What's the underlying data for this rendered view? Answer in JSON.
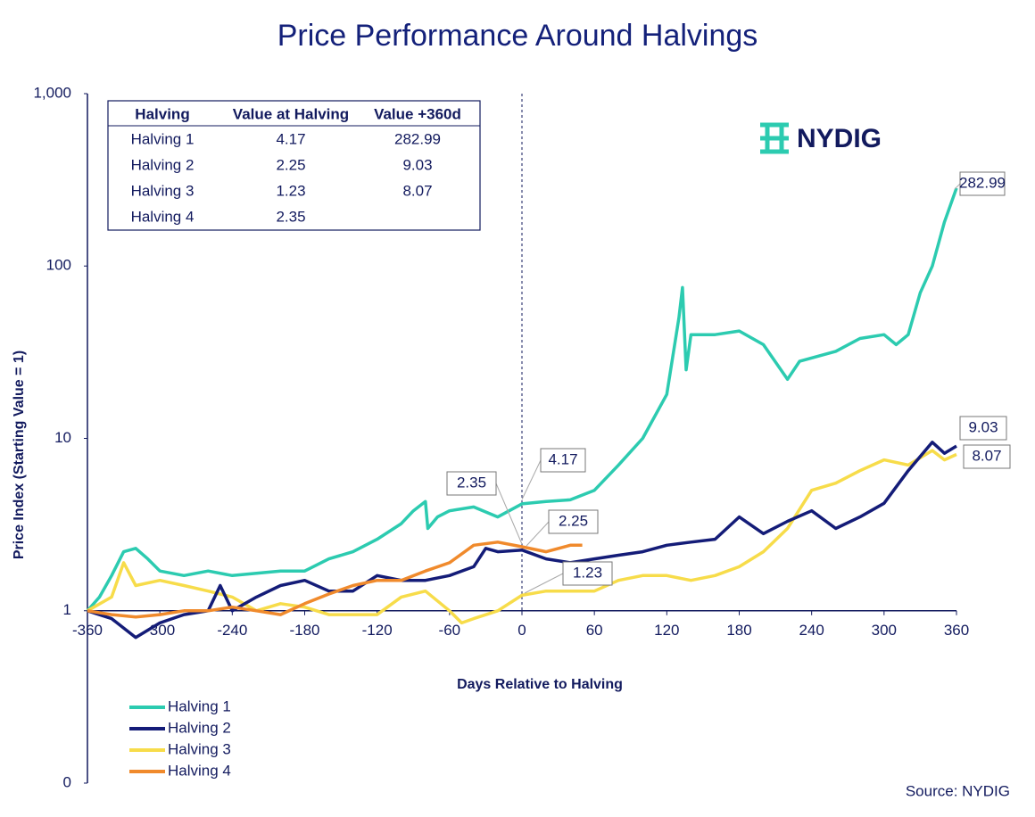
{
  "chart_data": {
    "type": "line",
    "title": "Price Performance Around Halvings",
    "xlabel": "Days Relative to Halving",
    "ylabel": "Price Index  (Starting Value = 1)",
    "source": "Source: NYDIG",
    "logo": "NYDIG",
    "log_scale": true,
    "legend": "bottom-left",
    "xlim": [
      -360,
      360
    ],
    "xticks": [
      -360,
      -300,
      -240,
      -180,
      -120,
      -60,
      0,
      60,
      120,
      180,
      240,
      300,
      360
    ],
    "ylim": [
      0.1,
      1000
    ],
    "yticks": [
      {
        "value": 0.1,
        "label": "0"
      },
      1,
      10,
      100,
      {
        "value": 1000,
        "label": "1,000"
      }
    ],
    "series": [
      {
        "name": "Halving 1",
        "color": "#2ccbb0",
        "x": [
          -360,
          -350,
          -340,
          -330,
          -320,
          -310,
          -300,
          -280,
          -260,
          -240,
          -220,
          -200,
          -180,
          -160,
          -140,
          -120,
          -100,
          -90,
          -80,
          -78,
          -70,
          -60,
          -40,
          -20,
          0,
          20,
          40,
          60,
          80,
          100,
          120,
          130,
          133,
          136,
          140,
          160,
          180,
          200,
          220,
          230,
          260,
          280,
          300,
          310,
          320,
          330,
          340,
          350,
          360
        ],
        "values": [
          1.0,
          1.2,
          1.6,
          2.2,
          2.3,
          2.0,
          1.7,
          1.6,
          1.7,
          1.6,
          1.65,
          1.7,
          1.7,
          2.0,
          2.2,
          2.6,
          3.2,
          3.8,
          4.3,
          3.0,
          3.5,
          3.8,
          4.0,
          3.5,
          4.17,
          4.3,
          4.4,
          5.0,
          7,
          10,
          18,
          50,
          75,
          25,
          40,
          40,
          42,
          35,
          22,
          28,
          32,
          38,
          40,
          35,
          40,
          70,
          100,
          180,
          282.99
        ]
      },
      {
        "name": "Halving 2",
        "color": "#141c78",
        "x": [
          -360,
          -340,
          -320,
          -300,
          -280,
          -260,
          -250,
          -240,
          -220,
          -200,
          -180,
          -160,
          -140,
          -120,
          -100,
          -80,
          -60,
          -40,
          -30,
          -20,
          0,
          20,
          40,
          60,
          80,
          100,
          120,
          140,
          160,
          180,
          200,
          220,
          240,
          260,
          280,
          300,
          320,
          340,
          350,
          360
        ],
        "values": [
          1.0,
          0.9,
          0.7,
          0.85,
          0.95,
          1.0,
          1.4,
          1.0,
          1.2,
          1.4,
          1.5,
          1.3,
          1.3,
          1.6,
          1.5,
          1.5,
          1.6,
          1.8,
          2.3,
          2.2,
          2.25,
          2.0,
          1.9,
          2.0,
          2.1,
          2.2,
          2.4,
          2.5,
          2.6,
          3.5,
          2.8,
          3.3,
          3.8,
          3.0,
          3.5,
          4.2,
          6.5,
          9.5,
          8.2,
          9.03
        ]
      },
      {
        "name": "Halving 3",
        "color": "#f7dc4a",
        "x": [
          -360,
          -340,
          -330,
          -320,
          -300,
          -280,
          -260,
          -240,
          -220,
          -200,
          -180,
          -160,
          -140,
          -120,
          -100,
          -80,
          -60,
          -50,
          -40,
          -20,
          0,
          20,
          40,
          60,
          80,
          100,
          120,
          140,
          160,
          180,
          200,
          220,
          240,
          260,
          280,
          300,
          320,
          340,
          350,
          360
        ],
        "values": [
          1.0,
          1.2,
          1.9,
          1.4,
          1.5,
          1.4,
          1.3,
          1.2,
          1.0,
          1.1,
          1.05,
          0.95,
          0.95,
          0.95,
          1.2,
          1.3,
          1.0,
          0.85,
          0.9,
          1.0,
          1.23,
          1.3,
          1.3,
          1.3,
          1.5,
          1.6,
          1.6,
          1.5,
          1.6,
          1.8,
          2.2,
          3.0,
          5.0,
          5.5,
          6.5,
          7.5,
          7.0,
          8.5,
          7.5,
          8.07
        ]
      },
      {
        "name": "Halving 4",
        "color": "#f08a2c",
        "x": [
          -360,
          -340,
          -320,
          -300,
          -280,
          -260,
          -240,
          -220,
          -200,
          -180,
          -160,
          -140,
          -120,
          -100,
          -80,
          -60,
          -40,
          -20,
          0,
          20,
          40,
          50
        ],
        "values": [
          1.0,
          0.95,
          0.92,
          0.95,
          1.0,
          1.0,
          1.05,
          1.0,
          0.95,
          1.1,
          1.25,
          1.4,
          1.5,
          1.5,
          1.7,
          1.9,
          2.4,
          2.5,
          2.35,
          2.2,
          2.4,
          2.4
        ]
      }
    ],
    "annotations": [
      "282.99",
      "9.03",
      "8.07",
      "4.17",
      "2.35",
      "2.25",
      "1.23"
    ],
    "table": {
      "columns": [
        "Halving",
        "Value at Halving",
        "Value +360d"
      ],
      "rows": [
        [
          "Halving 1",
          "4.17",
          "282.99"
        ],
        [
          "Halving 2",
          "2.25",
          "9.03"
        ],
        [
          "Halving 3",
          "1.23",
          "8.07"
        ],
        [
          "Halving 4",
          "2.35"
        ]
      ]
    }
  }
}
